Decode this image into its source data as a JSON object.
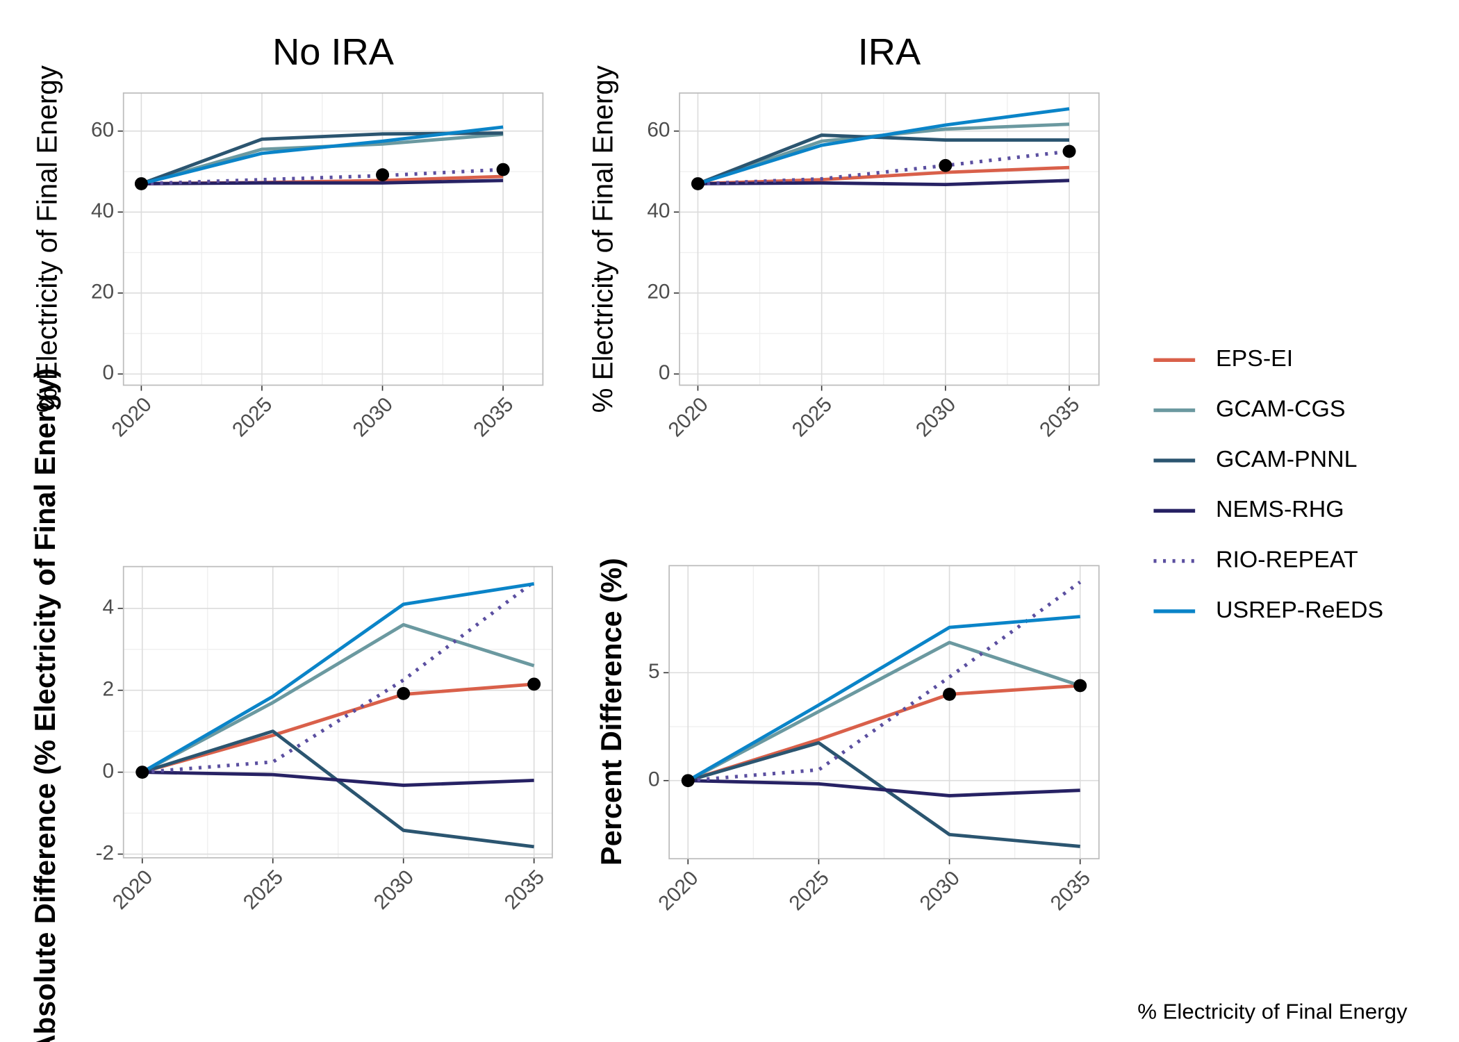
{
  "chart_data": [
    {
      "type": "line",
      "title": "No IRA",
      "y_label": "% Electricity of Final Energy",
      "x": [
        2020,
        2025,
        2030,
        2035
      ],
      "xlim": [
        2019.26,
        2036.65
      ],
      "xticks": [
        2020,
        2025,
        2030,
        2035
      ],
      "ylim": [
        -2.76,
        69.4
      ],
      "yticks": [
        0,
        20,
        40,
        60
      ],
      "grid": true,
      "series": [
        {
          "name": "EPS-EI",
          "color": "#d9604a",
          "values": [
            47,
            47.3,
            47.8,
            48.8
          ]
        },
        {
          "name": "GCAM-CGS",
          "color": "#6b99a0",
          "values": [
            47,
            55.5,
            56.8,
            59.2
          ]
        },
        {
          "name": "GCAM-PNNL",
          "color": "#2b5570",
          "values": [
            47,
            58,
            59.3,
            59.5
          ]
        },
        {
          "name": "NEMS-RHG",
          "color": "#272264",
          "values": [
            47,
            47.2,
            47.2,
            47.8
          ]
        },
        {
          "name": "RIO-REPEAT",
          "color": "#5b4fa0",
          "style": "dotted",
          "values": [
            47,
            48,
            49,
            50.5
          ]
        },
        {
          "name": "USREP-ReEDS",
          "color": "#0a84c8",
          "values": [
            47,
            54.5,
            57.5,
            61
          ]
        }
      ],
      "points": {
        "color": "#000000",
        "x": [
          2020,
          2030,
          2035
        ],
        "values": [
          47,
          49.2,
          50.5
        ]
      }
    },
    {
      "type": "line",
      "title": "IRA",
      "y_label": "% Electricity of Final Energy",
      "x": [
        2020,
        2025,
        2030,
        2035
      ],
      "xlim": [
        2019.26,
        2036.2
      ],
      "xticks": [
        2020,
        2025,
        2030,
        2035
      ],
      "ylim": [
        -2.76,
        69.4
      ],
      "yticks": [
        0,
        20,
        40,
        60
      ],
      "grid": true,
      "series": [
        {
          "name": "EPS-EI",
          "color": "#d9604a",
          "values": [
            47,
            48,
            49.8,
            51
          ]
        },
        {
          "name": "GCAM-CGS",
          "color": "#6b99a0",
          "values": [
            47,
            57.5,
            60.5,
            61.7
          ]
        },
        {
          "name": "GCAM-PNNL",
          "color": "#2b5570",
          "values": [
            47,
            59,
            57.8,
            57.8
          ]
        },
        {
          "name": "NEMS-RHG",
          "color": "#272264",
          "values": [
            47,
            47.2,
            46.8,
            47.8
          ]
        },
        {
          "name": "RIO-REPEAT",
          "color": "#5b4fa0",
          "style": "dotted",
          "values": [
            47,
            48.2,
            51.5,
            55
          ]
        },
        {
          "name": "USREP-ReEDS",
          "color": "#0a84c8",
          "values": [
            47,
            56.5,
            61.5,
            65.5
          ]
        }
      ],
      "points": {
        "color": "#000000",
        "x": [
          2020,
          2030,
          2035
        ],
        "values": [
          47,
          51.5,
          55
        ]
      }
    },
    {
      "type": "line",
      "y_label": "Absolute Difference (% Electricity of Final Energy)",
      "x": [
        2020,
        2025,
        2030,
        2035
      ],
      "xlim": [
        2019.28,
        2035.7
      ],
      "xticks": [
        2020,
        2025,
        2030,
        2035
      ],
      "ylim": [
        -2.09,
        5.02
      ],
      "yticks": [
        -2,
        0,
        2,
        4
      ],
      "grid": true,
      "series": [
        {
          "name": "EPS-EI",
          "color": "#d9604a",
          "values": [
            0,
            0.9,
            1.9,
            2.15
          ]
        },
        {
          "name": "GCAM-CGS",
          "color": "#6b99a0",
          "values": [
            0,
            1.7,
            3.6,
            2.6
          ]
        },
        {
          "name": "GCAM-PNNL",
          "color": "#2b5570",
          "values": [
            0,
            1.0,
            -1.42,
            -1.82
          ]
        },
        {
          "name": "NEMS-RHG",
          "color": "#272264",
          "values": [
            0,
            -0.06,
            -0.32,
            -0.2
          ]
        },
        {
          "name": "RIO-REPEAT",
          "color": "#5b4fa0",
          "style": "dotted",
          "values": [
            0,
            0.25,
            2.25,
            4.65
          ]
        },
        {
          "name": "USREP-ReEDS",
          "color": "#0a84c8",
          "values": [
            0,
            1.85,
            4.1,
            4.6
          ]
        }
      ],
      "points": {
        "color": "#000000",
        "x": [
          2020,
          2030,
          2035
        ],
        "values": [
          0,
          1.92,
          2.15
        ]
      }
    },
    {
      "type": "line",
      "y_label": "Percent Difference (%)",
      "x": [
        2020,
        2025,
        2030,
        2035
      ],
      "xlim": [
        2019.28,
        2035.72
      ],
      "xticks": [
        2020,
        2025,
        2030,
        2035
      ],
      "ylim": [
        -3.62,
        9.96
      ],
      "yticks": [
        0,
        5
      ],
      "grid": true,
      "series": [
        {
          "name": "EPS-EI",
          "color": "#d9604a",
          "values": [
            0,
            1.9,
            4.0,
            4.4
          ]
        },
        {
          "name": "GCAM-CGS",
          "color": "#6b99a0",
          "values": [
            0,
            3.2,
            6.4,
            4.4
          ]
        },
        {
          "name": "GCAM-PNNL",
          "color": "#2b5570",
          "values": [
            0,
            1.75,
            -2.5,
            -3.05
          ]
        },
        {
          "name": "NEMS-RHG",
          "color": "#272264",
          "values": [
            0,
            -0.15,
            -0.7,
            -0.45
          ]
        },
        {
          "name": "RIO-REPEAT",
          "color": "#5b4fa0",
          "style": "dotted",
          "values": [
            0,
            0.5,
            4.8,
            9.2
          ]
        },
        {
          "name": "USREP-ReEDS",
          "color": "#0a84c8",
          "values": [
            0,
            3.5,
            7.1,
            7.6
          ]
        }
      ],
      "points": {
        "color": "#000000",
        "x": [
          2020,
          2030,
          2035
        ],
        "values": [
          0,
          4.0,
          4.4
        ]
      }
    }
  ],
  "legend": {
    "title": "% Electricity of Final Energy",
    "position": "right"
  }
}
